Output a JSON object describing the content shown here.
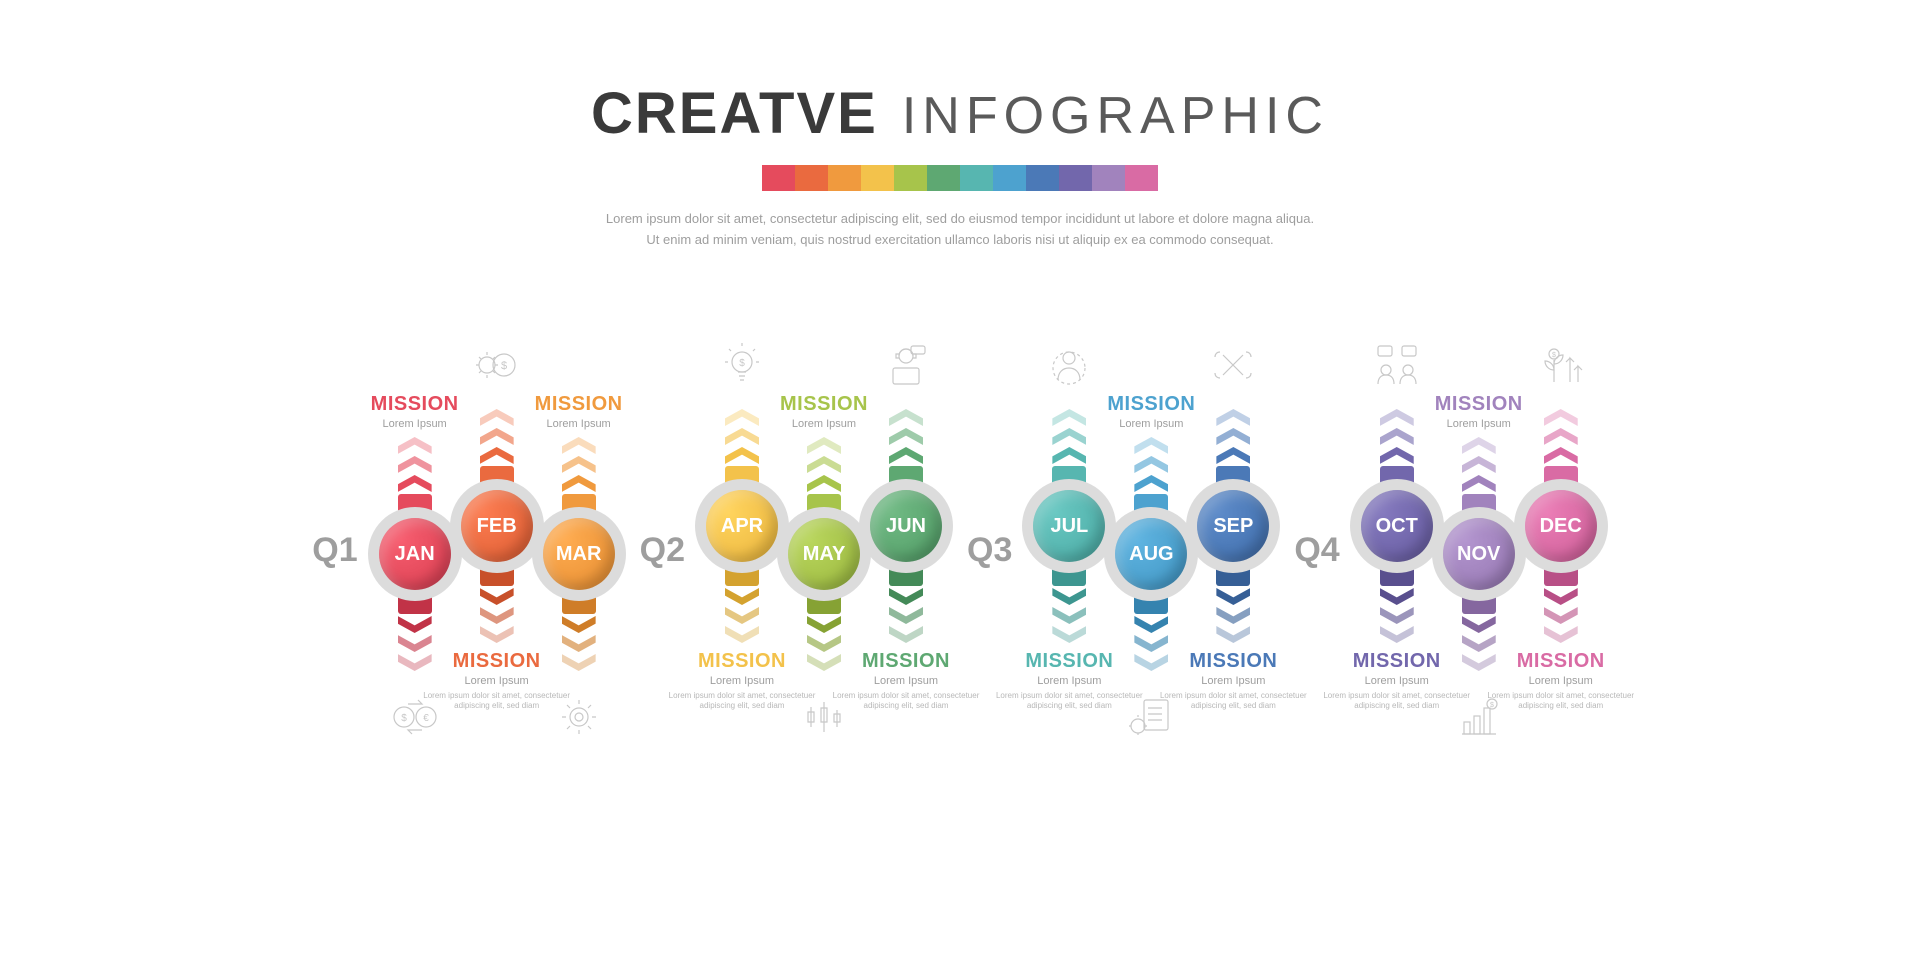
{
  "header": {
    "title_bold": "CREATVE",
    "title_light": "INFOGRAPHIC",
    "title_bold_color": "#3a3a3a",
    "title_light_color": "#5a5a5a",
    "title_bold_fontsize": 58,
    "title_light_fontsize": 52,
    "subtitle_line1": "Lorem ipsum dolor sit amet, consectetur adipiscing elit, sed do eiusmod tempor incididunt ut labore et dolore magna aliqua.",
    "subtitle_line2": "Ut enim ad minim veniam, quis nostrud exercitation ullamco laboris nisi ut aliquip ex ea commodo consequat.",
    "swatches": [
      "#e54b5d",
      "#ea6a3f",
      "#f09a3e",
      "#f3c24b",
      "#a7c44b",
      "#5ea872",
      "#57b6b0",
      "#4da2cf",
      "#4b79b7",
      "#7267ac",
      "#a183bd",
      "#d96ba4"
    ]
  },
  "mission_label": "MISSION",
  "mission_sub": "Lorem Ipsum",
  "mission_body": "Lorem ipsum dolor sit amet, consectetuer adipiscing elit, sed diam",
  "ring_color": "#dcdcdc",
  "connector_color": "#dcdcdc",
  "quarters": [
    {
      "label": "Q1",
      "months": [
        {
          "short": "JAN",
          "color": "#e54b5d",
          "dark": "#c13347",
          "orientation": "odd"
        },
        {
          "short": "FEB",
          "color": "#ea6a3f",
          "dark": "#c8502a",
          "orientation": "even"
        },
        {
          "short": "MAR",
          "color": "#f09a3e",
          "dark": "#cf7d28",
          "orientation": "odd"
        }
      ]
    },
    {
      "label": "Q2",
      "months": [
        {
          "short": "APR",
          "color": "#f3c24b",
          "dark": "#d4a22f",
          "orientation": "even"
        },
        {
          "short": "MAY",
          "color": "#a7c44b",
          "dark": "#86a234",
          "orientation": "odd"
        },
        {
          "short": "JUN",
          "color": "#5ea872",
          "dark": "#448a58",
          "orientation": "even"
        }
      ]
    },
    {
      "label": "Q3",
      "months": [
        {
          "short": "JUL",
          "color": "#57b6b0",
          "dark": "#3d9690",
          "orientation": "even"
        },
        {
          "short": "AUG",
          "color": "#4da2cf",
          "dark": "#3583af",
          "orientation": "odd"
        },
        {
          "short": "SEP",
          "color": "#4b79b7",
          "dark": "#365f96",
          "orientation": "even"
        }
      ]
    },
    {
      "label": "Q4",
      "months": [
        {
          "short": "OCT",
          "color": "#7267ac",
          "dark": "#594f8e",
          "orientation": "even"
        },
        {
          "short": "NOV",
          "color": "#a183bd",
          "dark": "#85679f",
          "orientation": "odd"
        },
        {
          "short": "DEC",
          "color": "#d96ba4",
          "dark": "#b84f86",
          "orientation": "even"
        }
      ]
    }
  ],
  "icons": {
    "JAN": "exchange",
    "FEB": "money-gear",
    "MAR": "gear",
    "APR": "bulb",
    "MAY": "candlestick",
    "JUN": "support",
    "JUL": "user-target",
    "AUG": "checklist-gear",
    "SEP": "hands",
    "OCT": "people-chat",
    "NOV": "bar-growth",
    "DEC": "plant-growth"
  }
}
